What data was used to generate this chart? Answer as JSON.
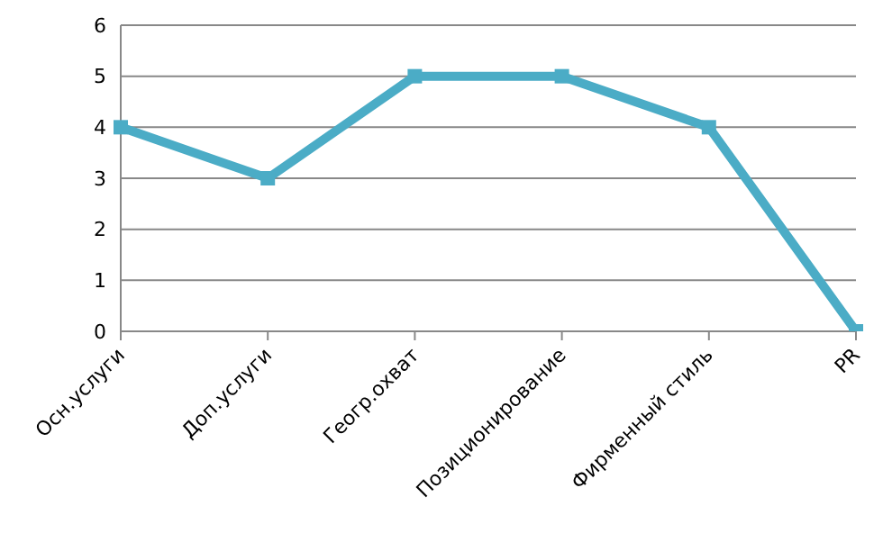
{
  "chart_data": {
    "type": "line",
    "categories": [
      "Осн.услуги",
      "Доп.услуги",
      "Геогр.охват",
      "Позиционирование",
      "Фирменный стиль",
      "PR"
    ],
    "series": [
      {
        "color": "#4bacc6",
        "values": [
          4,
          3,
          5,
          5,
          4,
          0
        ]
      }
    ],
    "ylim": [
      0,
      6
    ],
    "yticks": [
      0,
      1,
      2,
      3,
      4,
      5,
      6
    ],
    "grid": "y",
    "legend": false,
    "marker": "square",
    "line_style": "solid"
  }
}
